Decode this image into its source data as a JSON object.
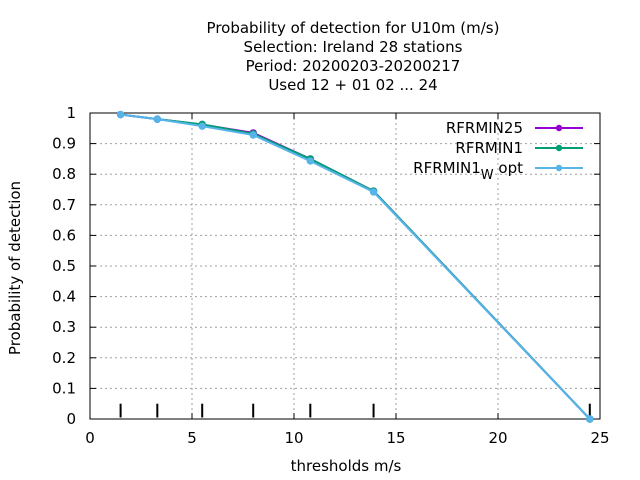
{
  "chart_data": {
    "type": "line",
    "title_lines": [
      "Probability of detection  for U10m (m/s)",
      "Selection: Ireland     28 stations",
      "Period: 20200203-20200217",
      "Used  12 + 01 02 ... 24"
    ],
    "xlabel": "thresholds m/s",
    "ylabel": "Probability of detection",
    "xlim": [
      0,
      25
    ],
    "ylim": [
      0,
      1
    ],
    "xticks": [
      0,
      5,
      10,
      15,
      20,
      25
    ],
    "xtick_labels": [
      "0",
      "5",
      "10",
      "15",
      "20",
      "25"
    ],
    "yticks": [
      0,
      0.1,
      0.2,
      0.3,
      0.4,
      0.5,
      0.6,
      0.7,
      0.8,
      0.9,
      1
    ],
    "ytick_labels": [
      "0",
      "0.1",
      "0.2",
      "0.3",
      "0.4",
      "0.5",
      "0.6",
      "0.7",
      "0.8",
      "0.9",
      "1"
    ],
    "grid": true,
    "legend_position": "top-right",
    "threshold_markers": [
      1.5,
      3.3,
      5.5,
      8,
      10.8,
      13.9,
      24.5
    ],
    "series": [
      {
        "name": "RFRMIN25",
        "color": "#9400d3",
        "x": [
          1.5,
          3.3,
          5.5,
          8,
          10.8,
          13.9,
          24.5
        ],
        "y": [
          0.995,
          0.98,
          0.962,
          0.935,
          0.85,
          0.745,
          0.0
        ]
      },
      {
        "name": "RFRMIN1",
        "color": "#009e73",
        "x": [
          1.5,
          3.3,
          5.5,
          8,
          10.8,
          13.9,
          24.5
        ],
        "y": [
          0.995,
          0.98,
          0.963,
          0.932,
          0.85,
          0.745,
          0.0
        ]
      },
      {
        "name": "RFRMIN1",
        "name_sub": "W",
        "name_suffix": "opt",
        "color": "#56b4e9",
        "x": [
          1.5,
          3.3,
          5.5,
          8,
          10.8,
          13.9,
          24.5
        ],
        "y": [
          0.995,
          0.98,
          0.957,
          0.928,
          0.843,
          0.742,
          0.0
        ]
      }
    ]
  }
}
